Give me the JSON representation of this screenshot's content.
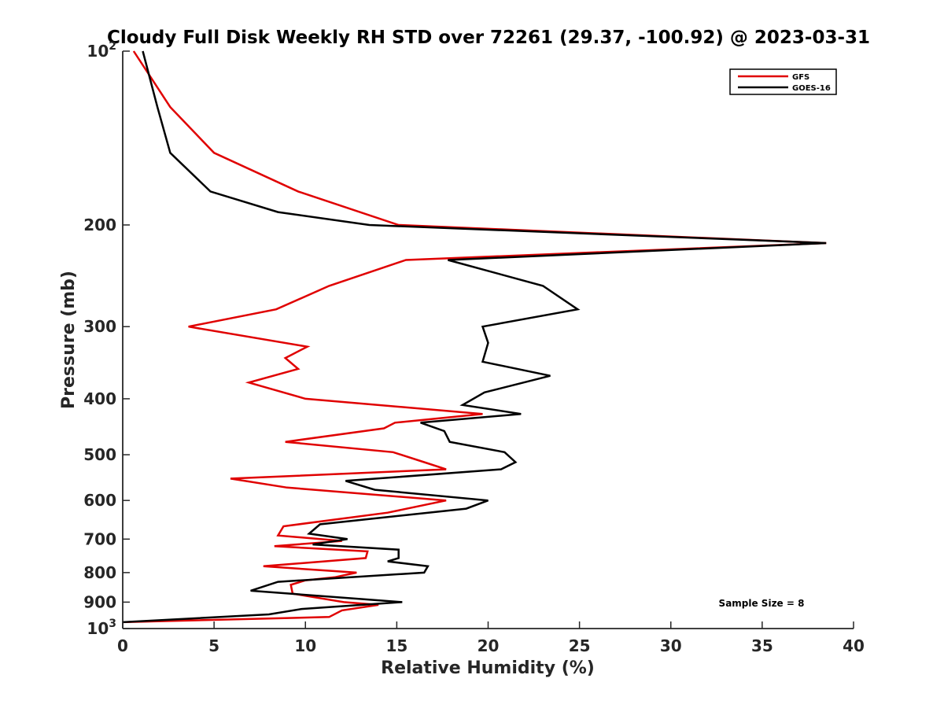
{
  "chart_data": {
    "type": "line",
    "title": "Cloudy Full Disk Weekly RH STD over 72261 (29.37, -100.92) @ 2023-03-31",
    "xlabel": "Relative Humidity (%)",
    "ylabel": "Pressure (mb)",
    "xlim": [
      0,
      40
    ],
    "ylim": [
      100,
      1000
    ],
    "y_scale": "log",
    "y_reversed": true,
    "grid": false,
    "legend_position": "top-right",
    "x_ticks": [
      0,
      5,
      10,
      15,
      20,
      25,
      30,
      35,
      40
    ],
    "x_tick_labels": [
      "0",
      "5",
      "10",
      "15",
      "20",
      "25",
      "30",
      "35",
      "40"
    ],
    "y_ticks": [
      100,
      200,
      300,
      400,
      500,
      600,
      700,
      800,
      900,
      1000
    ],
    "y_tick_labels": [
      {
        "base": "10",
        "exp": "2"
      },
      {
        "base": "200",
        "exp": ""
      },
      {
        "base": "300",
        "exp": ""
      },
      {
        "base": "400",
        "exp": ""
      },
      {
        "base": "500",
        "exp": ""
      },
      {
        "base": "600",
        "exp": ""
      },
      {
        "base": "700",
        "exp": ""
      },
      {
        "base": "800",
        "exp": ""
      },
      {
        "base": "900",
        "exp": ""
      },
      {
        "base": "10",
        "exp": "3"
      }
    ],
    "annotation": "Sample Size = 8",
    "series": [
      {
        "name": "GFS",
        "color": "#e00000",
        "points": [
          [
            0.6,
            100
          ],
          [
            2.6,
            125
          ],
          [
            5.0,
            150
          ],
          [
            9.6,
            175
          ],
          [
            15.1,
            200
          ],
          [
            38.5,
            215
          ],
          [
            15.5,
            230
          ],
          [
            11.3,
            255
          ],
          [
            8.4,
            280
          ],
          [
            3.6,
            300
          ],
          [
            10.1,
            325
          ],
          [
            8.9,
            340
          ],
          [
            9.6,
            355
          ],
          [
            6.9,
            375
          ],
          [
            10.0,
            400
          ],
          [
            19.7,
            425
          ],
          [
            14.9,
            440
          ],
          [
            14.3,
            450
          ],
          [
            8.9,
            475
          ],
          [
            14.8,
            495
          ],
          [
            16.5,
            515
          ],
          [
            17.7,
            530
          ],
          [
            5.9,
            550
          ],
          [
            9.0,
            570
          ],
          [
            17.7,
            600
          ],
          [
            14.5,
            630
          ],
          [
            8.8,
            665
          ],
          [
            8.5,
            690
          ],
          [
            12.0,
            705
          ],
          [
            8.3,
            720
          ],
          [
            13.4,
            735
          ],
          [
            13.3,
            755
          ],
          [
            7.7,
            780
          ],
          [
            12.8,
            800
          ],
          [
            11.6,
            815
          ],
          [
            10.0,
            825
          ],
          [
            9.2,
            840
          ],
          [
            9.3,
            870
          ],
          [
            12.1,
            900
          ],
          [
            14.0,
            910
          ],
          [
            12.0,
            930
          ],
          [
            11.3,
            955
          ],
          [
            0.0,
            975
          ]
        ]
      },
      {
        "name": "GOES-16",
        "color": "#000000",
        "points": [
          [
            1.1,
            100
          ],
          [
            1.9,
            125
          ],
          [
            2.6,
            150
          ],
          [
            4.8,
            175
          ],
          [
            8.5,
            190
          ],
          [
            13.5,
            200
          ],
          [
            38.5,
            215
          ],
          [
            17.8,
            230
          ],
          [
            23.0,
            255
          ],
          [
            24.9,
            280
          ],
          [
            19.7,
            300
          ],
          [
            20.0,
            320
          ],
          [
            19.7,
            345
          ],
          [
            23.4,
            365
          ],
          [
            19.8,
            390
          ],
          [
            18.6,
            410
          ],
          [
            21.8,
            425
          ],
          [
            16.3,
            440
          ],
          [
            17.6,
            455
          ],
          [
            17.9,
            475
          ],
          [
            20.9,
            495
          ],
          [
            21.5,
            515
          ],
          [
            20.7,
            530
          ],
          [
            12.2,
            555
          ],
          [
            13.8,
            575
          ],
          [
            20.0,
            600
          ],
          [
            18.8,
            620
          ],
          [
            10.8,
            660
          ],
          [
            10.2,
            685
          ],
          [
            12.3,
            700
          ],
          [
            10.4,
            715
          ],
          [
            15.1,
            730
          ],
          [
            15.1,
            755
          ],
          [
            14.5,
            765
          ],
          [
            16.7,
            780
          ],
          [
            16.5,
            800
          ],
          [
            8.5,
            830
          ],
          [
            7.0,
            860
          ],
          [
            15.3,
            900
          ],
          [
            9.8,
            925
          ],
          [
            8.0,
            945
          ],
          [
            0.0,
            975
          ]
        ]
      }
    ]
  }
}
